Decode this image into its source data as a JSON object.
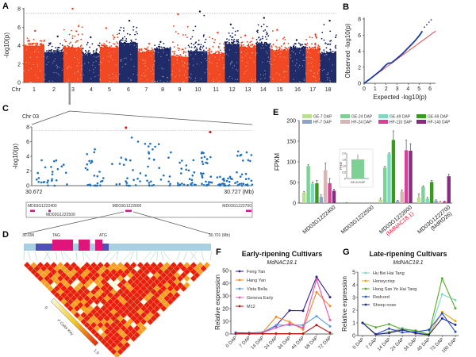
{
  "figure": {
    "panel_labels": [
      "A",
      "B",
      "C",
      "D",
      "E",
      "F",
      "G"
    ]
  },
  "chart_data": [
    {
      "id": "A",
      "type": "scatter",
      "subtype": "manhattan",
      "title": "",
      "xlabel": "Chr",
      "ylabel": "-log10(p)",
      "ylim": [
        0,
        8
      ],
      "yticks": [
        0,
        2,
        4,
        6,
        8
      ],
      "threshold": 7.5,
      "categories": [
        "1",
        "2",
        "3",
        "4",
        "5",
        "6",
        "7",
        "8",
        "9",
        "10",
        "11",
        "12",
        "13",
        "14",
        "15",
        "16",
        "17",
        "18"
      ],
      "colors": [
        "#f03a10",
        "#0d1a5c"
      ],
      "chromosome_peaks": [
        5.6,
        5.0,
        8.0,
        4.9,
        5.9,
        6.7,
        4.2,
        4.4,
        7.4,
        7.7,
        5.4,
        6.3,
        5.1,
        7.0,
        5.7,
        4.6,
        5.2,
        6.7
      ],
      "chromosome_bulk_max": [
        4.0,
        3.3,
        3.8,
        3.1,
        3.8,
        4.3,
        3.3,
        3.6,
        2.8,
        3.4,
        3.1,
        4.2,
        3.8,
        4.2,
        3.5,
        3.7,
        3.6,
        3.2
      ]
    },
    {
      "id": "B",
      "type": "scatter",
      "subtype": "qq",
      "xlabel": "Expected -log10(p)",
      "ylabel": "Observed -log10(p)",
      "xlim": [
        0,
        6.5
      ],
      "ylim": [
        0,
        8
      ],
      "xticks": [
        0,
        1,
        2,
        3,
        4,
        5,
        6
      ],
      "yticks": [
        0,
        2,
        4,
        6,
        8
      ],
      "expected_line_color": "#e05050",
      "observed_color": "#1a3aa8",
      "points": [
        [
          0,
          0
        ],
        [
          0.5,
          0.5
        ],
        [
          1,
          1.05
        ],
        [
          1.5,
          1.6
        ],
        [
          2,
          2.3
        ],
        [
          2.2,
          2.5
        ],
        [
          2.5,
          2.55
        ],
        [
          3,
          3.1
        ],
        [
          3.5,
          3.7
        ],
        [
          4,
          4.4
        ],
        [
          4.5,
          5.1
        ],
        [
          5,
          5.9
        ],
        [
          5.3,
          6.5
        ],
        [
          5.5,
          7.0
        ],
        [
          5.7,
          7.3
        ],
        [
          5.9,
          7.6
        ],
        [
          6.1,
          7.9
        ]
      ]
    },
    {
      "id": "C",
      "type": "scatter",
      "title": "Chr 03",
      "xlabel": "(Mb)",
      "ylabel": "-log10(p)",
      "xlim": [
        30.672,
        30.727
      ],
      "ylim": [
        0,
        8
      ],
      "yticks": [
        0,
        2,
        4,
        6,
        8
      ],
      "xtick_labels": [
        "30.672",
        "30.727 (Mb)"
      ],
      "threshold": 7.5,
      "significant_points": [
        [
          30.6955,
          7.9
        ],
        [
          30.7165,
          7.3
        ]
      ],
      "point_color": "#1f6fbf",
      "significant_color": "#e01a1a",
      "genes": [
        "MD03G1222400",
        "MD03G1222500",
        "MD03G1222600",
        "MD03G1222700"
      ]
    },
    {
      "id": "D",
      "type": "heatmap",
      "subtype": "ld-triangle",
      "region_start": "30.696",
      "region_end": "30.701 (Mb)",
      "annotations": [
        "TAG",
        "ATG"
      ],
      "color_key_label": "r² Color Key",
      "color_key_range": [
        "0",
        "1.0"
      ],
      "color_low": "#fffbe0",
      "color_mid": "#f5a020",
      "color_high": "#e8200a"
    },
    {
      "id": "E",
      "type": "bar",
      "ylabel": "FPKM",
      "ylim": [
        0,
        200
      ],
      "yticks": [
        0,
        50,
        100,
        150,
        200
      ],
      "categories": [
        "MD03G1222400",
        "MD03G1222500",
        "MD03G1222600",
        "MD03G1222700"
      ],
      "category_sublabels": [
        "",
        "",
        "(MdNAC18.1)",
        "(MdRD26)"
      ],
      "category_sublabel_colors": [
        "",
        "",
        "#e0102a",
        "#222222"
      ],
      "series": [
        {
          "name": "GE-7 DAP",
          "color": "#b9e08a",
          "values": [
            25,
            0,
            9,
            14
          ],
          "errors": [
            3,
            0,
            3,
            8
          ]
        },
        {
          "name": "GE-24 DAP",
          "color": "#7fd095",
          "values": [
            90,
            1.5,
            86,
            40
          ],
          "errors": [
            3,
            0,
            3,
            2
          ]
        },
        {
          "name": "GE-49 DAP",
          "color": "#80d8c2",
          "values": [
            47,
            0,
            120,
            11
          ],
          "errors": [
            4,
            0,
            2,
            3
          ]
        },
        {
          "name": "GE-69 DAP",
          "color": "#3a9a20",
          "values": [
            48,
            0,
            153,
            51
          ],
          "errors": [
            7,
            0,
            22,
            4
          ]
        },
        {
          "name": "HF-7 DAP",
          "color": "#8ea4c6",
          "values": [
            15,
            0,
            5,
            6
          ],
          "errors": [
            5,
            0,
            2,
            2
          ]
        },
        {
          "name": "HF-24 DAP",
          "color": "#d8b4b4",
          "values": [
            80,
            0,
            28,
            3
          ],
          "errors": [
            17,
            0,
            4,
            1
          ]
        },
        {
          "name": "HF-110 DAP",
          "color": "#d8409a",
          "values": [
            48,
            0,
            128,
            4
          ],
          "errors": [
            12,
            0,
            25,
            1
          ]
        },
        {
          "name": "HF-140 DAP",
          "color": "#8a2a80",
          "values": [
            30,
            0,
            127,
            65
          ],
          "errors": [
            4,
            0,
            17,
            5
          ]
        }
      ],
      "inset": {
        "ylabel": "FPKM",
        "ylim": [
          0,
          2.0
        ],
        "yticks": [
          "0",
          "0.5",
          "1.0",
          "1.5",
          "2.0"
        ],
        "category": "GE-24 DAP",
        "value": 1.5,
        "error": 0.4,
        "color": "#7fd095"
      }
    },
    {
      "id": "F",
      "type": "line",
      "title": "Early-ripening Cultivars",
      "subtitle": "MdNAC18.1",
      "ylabel": "Relative expression",
      "ylim": [
        0,
        50
      ],
      "yticks": [
        0,
        10,
        20,
        30,
        40,
        50
      ],
      "x": [
        "0 DAP",
        "7 DAP",
        "14 DAP",
        "24 DAP",
        "34 DAP",
        "44 DAP",
        "58 DAP",
        "72 DAP"
      ],
      "series": [
        {
          "name": "Feng Yan",
          "color": "#2a1f8f",
          "marker": "circle",
          "values": [
            1,
            0.8,
            1.2,
            6.5,
            18.5,
            18.3,
            45,
            29
          ]
        },
        {
          "name": "Hang Yan",
          "color": "#f08a30",
          "marker": "square",
          "values": [
            0.5,
            0.5,
            1,
            13.5,
            9.5,
            3.5,
            33,
            22
          ]
        },
        {
          "name": "Vista Bella",
          "color": "#5a9ae0",
          "marker": "triangle",
          "values": [
            0.5,
            0.5,
            1,
            7,
            7,
            7,
            14,
            6
          ]
        },
        {
          "name": "Geneva Early",
          "color": "#f050b0",
          "marker": "triangle-down",
          "values": [
            0.5,
            0.3,
            1,
            5,
            8,
            5,
            43,
            11
          ]
        },
        {
          "name": "M12",
          "color": "#b01a1a",
          "marker": "diamond",
          "values": [
            0.2,
            0.2,
            0.3,
            0.3,
            0.3,
            0.3,
            7,
            1
          ]
        }
      ]
    },
    {
      "id": "G",
      "type": "line",
      "title": "Late-ripening Cultivars",
      "subtitle": "MdNAC18.1",
      "ylabel": "Relative expression",
      "ylim": [
        0,
        5
      ],
      "yticks": [
        0,
        1,
        2,
        3,
        4,
        5
      ],
      "x": [
        "0 DAP",
        "7 DAP",
        "14 DAP",
        "24 DAP",
        "34 DAP",
        "49 DAP",
        "73 DAP",
        "180 DAP"
      ],
      "series": [
        {
          "name": "Hu Bei Hai Tang",
          "color": "#80d8c0",
          "marker": "circle",
          "values": [
            1,
            0.05,
            0.3,
            0.6,
            0.3,
            0.05,
            3.25,
            2.8
          ]
        },
        {
          "name": "Honeycrisp",
          "color": "#f0a800",
          "marker": "square",
          "values": [
            1,
            0.05,
            0.25,
            0.5,
            0.15,
            0.05,
            1.85,
            1.15
          ]
        },
        {
          "name": "Hong San Ye Hai Tang",
          "color": "#5aa830",
          "marker": "triangle",
          "values": [
            1,
            0.65,
            0.9,
            0.5,
            0.4,
            0.1,
            4.5,
            2.15
          ]
        },
        {
          "name": "Redcord",
          "color": "#2a50c0",
          "marker": "triangle-down",
          "values": [
            1,
            0.1,
            0.55,
            0.25,
            0.3,
            0.45,
            1.75,
            0.3
          ]
        },
        {
          "name": "Sheep nose",
          "color": "#1a2a90",
          "marker": "diamond",
          "values": [
            1,
            0.1,
            0.2,
            0.45,
            0.2,
            0.05,
            1.35,
            0.85
          ]
        }
      ]
    }
  ]
}
